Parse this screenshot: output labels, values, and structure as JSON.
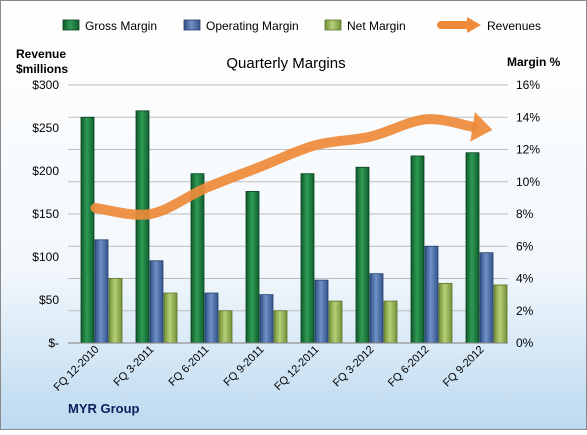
{
  "chart_data": {
    "type": "bar",
    "title": "Quarterly Margins",
    "left_axis_label": [
      "Revenue",
      "$millions"
    ],
    "right_axis_label": "Margin %",
    "footer": "MYR Group",
    "categories": [
      "FQ 12-2010",
      "FQ 3-2011",
      "FQ 6-2011",
      "FQ 9-2011",
      "FQ 12-2011",
      "FQ 3-2012",
      "FQ 6-2012",
      "FQ 9-2012"
    ],
    "left_axis": {
      "ylim": [
        0,
        300
      ],
      "ticks": [
        "$-",
        "$50",
        "$100",
        "$150",
        "$200",
        "$250",
        "$300"
      ]
    },
    "right_axis": {
      "ylim": [
        0,
        16
      ],
      "ticks": [
        "0%",
        "2%",
        "4%",
        "6%",
        "8%",
        "10%",
        "12%",
        "14%",
        "16%"
      ]
    },
    "grid": true,
    "legend_position": "top",
    "series": [
      {
        "name": "Gross Margin",
        "kind": "bar",
        "axis": "right",
        "color": "#1f7f3f",
        "values": [
          14.0,
          14.4,
          10.5,
          9.4,
          10.5,
          10.9,
          11.6,
          11.8
        ]
      },
      {
        "name": "Operating Margin",
        "kind": "bar",
        "axis": "right",
        "color": "#4a6ea8",
        "values": [
          6.4,
          5.1,
          3.1,
          3.0,
          3.9,
          4.3,
          6.0,
          5.6
        ]
      },
      {
        "name": "Net Margin",
        "kind": "bar",
        "axis": "right",
        "color": "#9bb75a",
        "values": [
          4.0,
          3.1,
          2.0,
          2.0,
          2.6,
          2.6,
          3.7,
          3.6
        ]
      },
      {
        "name": "Revenues",
        "kind": "line",
        "axis": "left",
        "color": "#ee8a3a",
        "values": [
          157,
          150,
          180,
          205,
          230,
          240,
          260,
          250
        ]
      }
    ]
  }
}
